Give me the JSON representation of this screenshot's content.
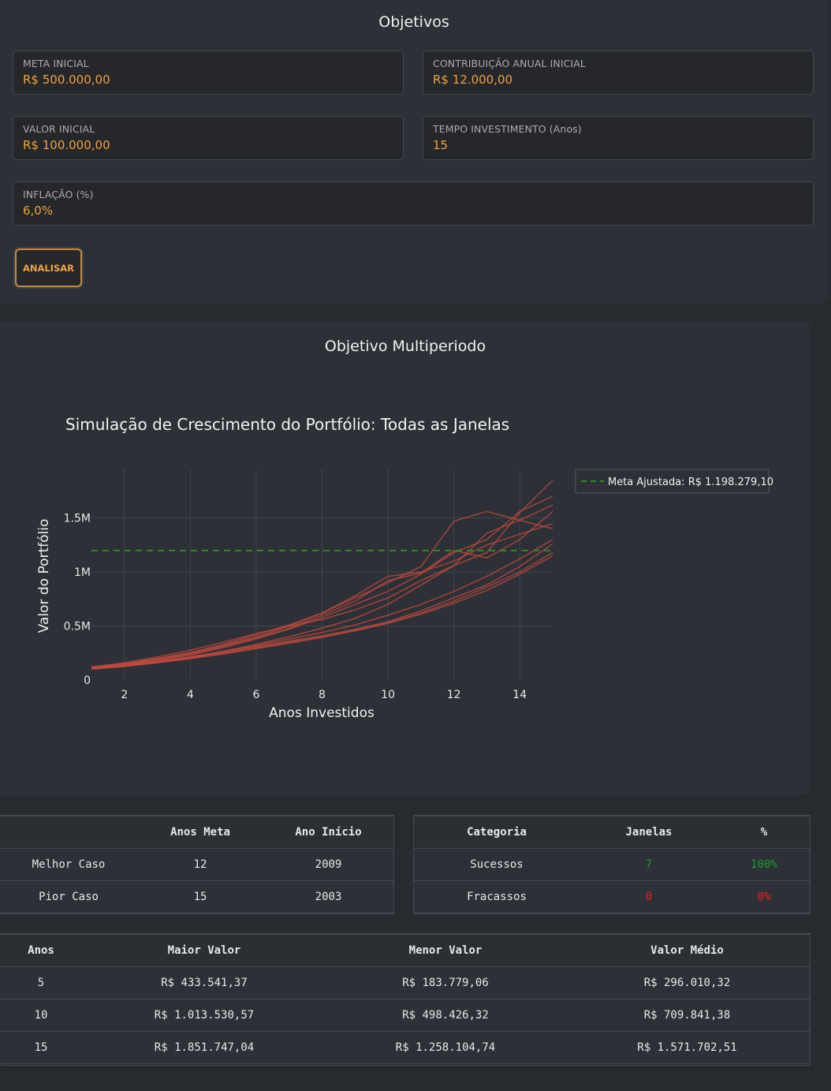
{
  "objetivos": {
    "title": "Objetivos",
    "fields": {
      "meta_inicial": {
        "label": "META INICIAL",
        "value": "R$ 500.000,00"
      },
      "contribuicao": {
        "label": "CONTRIBUIÇÃO ANUAL INICIAL",
        "value": "R$ 12.000,00"
      },
      "valor_inicial": {
        "label": "VALOR INICIAL",
        "value": "R$ 100.000,00"
      },
      "tempo": {
        "label": "TEMPO INVESTIMENTO (Anos)",
        "value": "15"
      },
      "inflacao": {
        "label": "INFLAÇÃO (%)",
        "value": "6,0%"
      }
    },
    "analisar_label": "ANALISAR"
  },
  "multiperiodo": {
    "title": "Objetivo Multiperiodo"
  },
  "chart_data": {
    "type": "line",
    "title": "Simulação de Crescimento do Portfólio: Todas as Janelas",
    "xlabel": "Anos Investidos",
    "ylabel": "Valor do Portfólio",
    "xlim": [
      1,
      15
    ],
    "ylim": [
      0,
      1950000
    ],
    "xticks": [
      2,
      4,
      6,
      8,
      10,
      12,
      14
    ],
    "yticks": [
      0,
      500000,
      1000000,
      1500000
    ],
    "ytick_labels": [
      "0",
      "0.5M",
      "1M",
      "1.5M"
    ],
    "grid": true,
    "legend_position": "top-right",
    "line_color": "#c0493f",
    "meta_line": {
      "label": "Meta Ajustada: R$ 1.198.279,10",
      "value": 1198279.1,
      "color": "#2e8b1f"
    },
    "x": [
      1,
      2,
      3,
      4,
      5,
      6,
      7,
      8,
      9,
      10,
      11,
      12,
      13,
      14,
      15
    ],
    "series": [
      {
        "values": [
          115000,
          150000,
          200000,
          255000,
          330000,
          420000,
          510000,
          620000,
          760000,
          900000,
          1050000,
          1470000,
          1560000,
          1480000,
          1400000
        ]
      },
      {
        "values": [
          110000,
          140000,
          185000,
          230000,
          300000,
          380000,
          470000,
          580000,
          700000,
          820000,
          980000,
          1180000,
          1300000,
          1560000,
          1700000
        ]
      },
      {
        "values": [
          120000,
          160000,
          215000,
          275000,
          350000,
          430000,
          500000,
          560000,
          650000,
          760000,
          920000,
          1060000,
          1360000,
          1480000,
          1620000
        ]
      },
      {
        "values": [
          105000,
          135000,
          170000,
          210000,
          265000,
          330000,
          400000,
          480000,
          570000,
          700000,
          880000,
          1060000,
          1180000,
          1550000,
          1850000
        ]
      },
      {
        "values": [
          110000,
          145000,
          190000,
          240000,
          310000,
          390000,
          480000,
          600000,
          730000,
          920000,
          990000,
          1200000,
          1130000,
          1300000,
          1560000
        ]
      },
      {
        "values": [
          100000,
          125000,
          160000,
          200000,
          255000,
          310000,
          360000,
          410000,
          470000,
          540000,
          640000,
          760000,
          880000,
          1050000,
          1260000
        ]
      },
      {
        "values": [
          108000,
          132000,
          165000,
          205000,
          250000,
          300000,
          350000,
          400000,
          460000,
          530000,
          620000,
          730000,
          860000,
          1000000,
          1180000
        ]
      },
      {
        "values": [
          112000,
          138000,
          175000,
          215000,
          265000,
          320000,
          380000,
          440000,
          510000,
          600000,
          700000,
          820000,
          960000,
          1120000,
          1300000
        ]
      },
      {
        "values": [
          106000,
          130000,
          160000,
          198000,
          240000,
          290000,
          340000,
          395000,
          455000,
          525000,
          610000,
          710000,
          830000,
          980000,
          1150000
        ]
      },
      {
        "values": [
          118000,
          150000,
          195000,
          250000,
          320000,
          400000,
          500000,
          620000,
          780000,
          960000,
          1000000,
          1100000,
          1250000,
          1350000,
          1450000
        ]
      }
    ]
  },
  "casos_table": {
    "headers": [
      "",
      "Anos Meta",
      "Ano Início"
    ],
    "rows": [
      [
        "Melhor Caso",
        "12",
        "2009"
      ],
      [
        "Pior Caso",
        "15",
        "2003"
      ]
    ]
  },
  "categoria_table": {
    "headers": [
      "Categoria",
      "Janelas",
      "%"
    ],
    "rows": [
      [
        "Sucessos",
        "7",
        "100%"
      ],
      [
        "Fracassos",
        "0",
        "0%"
      ]
    ],
    "success_color": "#1f9d2a",
    "fail_color": "#ff1a1a"
  },
  "valores_table": {
    "headers": [
      "Anos",
      "Maior Valor",
      "Menor Valor",
      "Valor Médio"
    ],
    "rows": [
      [
        "5",
        "R$ 433.541,37",
        "R$ 183.779,06",
        "R$ 296.010,32"
      ],
      [
        "10",
        "R$ 1.013.530,57",
        "R$ 498.426,32",
        "R$ 709.841,38"
      ],
      [
        "15",
        "R$ 1.851.747,04",
        "R$ 1.258.104,74",
        "R$ 1.571.702,51"
      ]
    ]
  }
}
